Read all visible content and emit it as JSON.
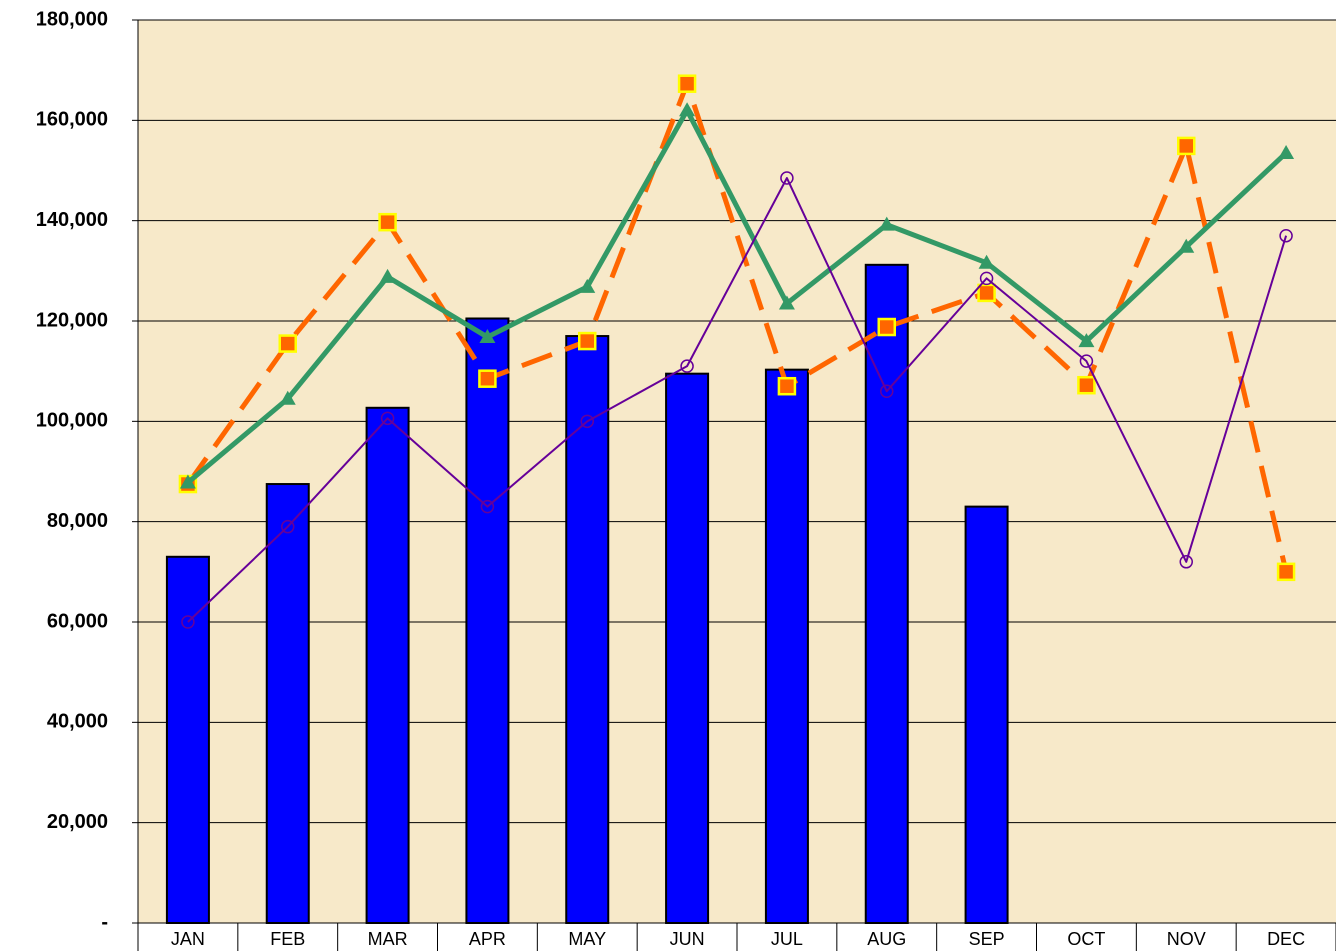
{
  "chart_data": {
    "type": "bar",
    "categories": [
      "JAN",
      "FEB",
      "MAR",
      "APR",
      "MAY",
      "JUN",
      "JUL",
      "AUG",
      "SEP",
      "OCT",
      "NOV",
      "DEC"
    ],
    "series": [
      {
        "type": "bar",
        "color": "#0000ff",
        "values": [
          73000,
          87500,
          102700,
          120500,
          117000,
          109500,
          110300,
          131200,
          83000,
          null,
          null,
          null
        ]
      },
      {
        "type": "line",
        "color": "#ff6600",
        "marker": "square",
        "marker_edge": "#ffff00",
        "dashed": true,
        "values": [
          87500,
          115500,
          139700,
          108500,
          116000,
          167300,
          107000,
          118800,
          125600,
          107200,
          154900,
          70000
        ]
      },
      {
        "type": "line",
        "color": "#339966",
        "marker": "triangle",
        "dashed": false,
        "values": [
          87800,
          104500,
          128800,
          116800,
          126800,
          162000,
          123500,
          139200,
          131600,
          116000,
          134800,
          153500
        ]
      },
      {
        "type": "line",
        "color": "#660099",
        "marker": "circle",
        "dashed": false,
        "values": [
          60000,
          79000,
          100600,
          83000,
          100000,
          111000,
          148500,
          106000,
          128500,
          112000,
          72000,
          137000
        ]
      }
    ],
    "ylim": [
      0,
      180000
    ],
    "yticks": [
      {
        "value": 0,
        "label": "-"
      },
      {
        "value": 20000,
        "label": "20,000"
      },
      {
        "value": 40000,
        "label": "40,000"
      },
      {
        "value": 60000,
        "label": "60,000"
      },
      {
        "value": 80000,
        "label": "80,000"
      },
      {
        "value": 100000,
        "label": "100,000"
      },
      {
        "value": 120000,
        "label": "120,000"
      },
      {
        "value": 140000,
        "label": "140,000"
      },
      {
        "value": 160000,
        "label": "160,000"
      },
      {
        "value": 180000,
        "label": "180,000"
      }
    ],
    "grid": true,
    "background": "#f7e9c9"
  }
}
